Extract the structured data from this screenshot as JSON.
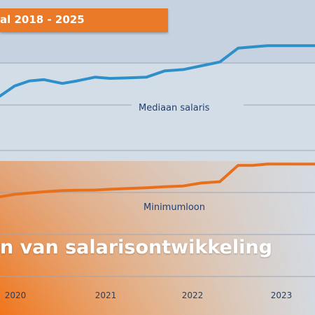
{
  "banner": {
    "period_label": "al 2018 - 2025",
    "headline": "n van salarisontwikkeling"
  },
  "colors": {
    "median_line": "#2e8fc9",
    "minimum_line": "#e8701c",
    "accent": "#ea7a28",
    "label_blue": "#1f3f73",
    "grid": "#9aa7b8"
  },
  "chart_data": {
    "type": "line",
    "title": "",
    "xlabel": "",
    "ylabel": "",
    "x_ticks": [
      "2020",
      "2021",
      "2022",
      "2023"
    ],
    "xlim": [
      2019.6,
      2023.9
    ],
    "ylim": [
      0,
      100
    ],
    "grid": true,
    "series": [
      {
        "name": "Mediaan salaris",
        "x": [
          2019.6,
          2019.8,
          2020.0,
          2020.2,
          2020.45,
          2020.65,
          2020.9,
          2021.1,
          2021.35,
          2021.6,
          2021.85,
          2022.1,
          2022.35,
          2022.6,
          2022.85,
          2023.05,
          2023.25,
          2023.9
        ],
        "y": [
          73,
          77,
          79,
          79.5,
          78,
          79,
          80.5,
          80,
          80.2,
          80.5,
          83,
          83.5,
          85,
          86.5,
          92,
          92.5,
          93,
          93
        ]
      },
      {
        "name": "Minimumloon",
        "x": [
          2019.6,
          2019.8,
          2020.0,
          2020.2,
          2020.45,
          2020.65,
          2020.9,
          2021.1,
          2021.35,
          2021.6,
          2021.85,
          2022.1,
          2022.35,
          2022.6,
          2022.85,
          2023.05,
          2023.25,
          2023.9
        ],
        "y": [
          33,
          34,
          34.5,
          35,
          35.5,
          35.6,
          35.7,
          36,
          36.3,
          36.6,
          37,
          37.3,
          38.5,
          39,
          45.5,
          45.5,
          46,
          46
        ]
      }
    ]
  }
}
